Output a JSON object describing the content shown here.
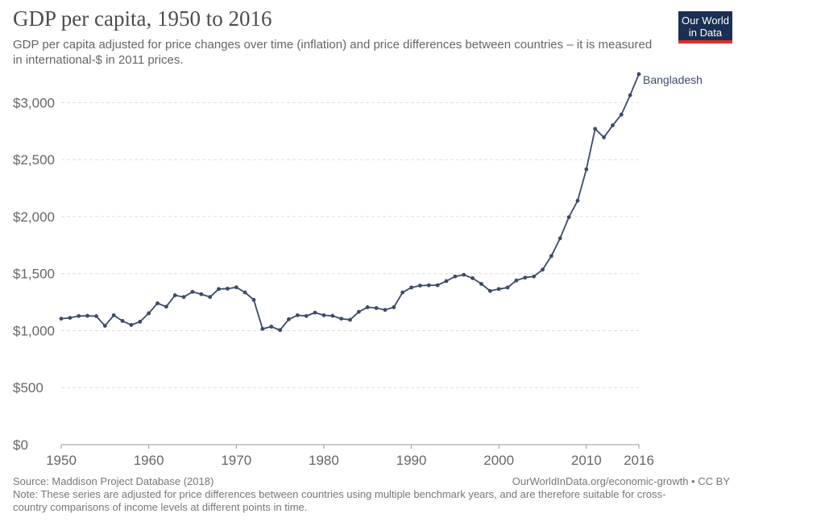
{
  "title": "GDP per capita, 1950 to 2016",
  "subtitle": "GDP per capita adjusted for price changes over time (inflation) and price differences between countries – it is measured in international-$ in 2011 prices.",
  "logo": {
    "line1": "Our World",
    "line2": "in Data"
  },
  "source": "Source: Maddison Project Database (2018)",
  "footer_link": "OurWorldInData.org/economic-growth • CC BY",
  "note": "Note: These series are adjusted for price differences between countries using multiple benchmark years, and are therefore suitable for cross-country comparisons of income levels at different points in time.",
  "colors": {
    "series": "#3c4a66",
    "grid": "#dddddd",
    "axis_text": "#666666",
    "logo_bg": "#1a2f52",
    "logo_accent": "#e0302a"
  },
  "chart_data": {
    "type": "line",
    "title": "GDP per capita, 1950 to 2016",
    "xlabel": "",
    "ylabel": "",
    "xlim": [
      1950,
      2016
    ],
    "ylim": [
      0,
      3250
    ],
    "grid": true,
    "x_ticks": [
      1950,
      1960,
      1970,
      1980,
      1990,
      2000,
      2010,
      2016
    ],
    "y_ticks": [
      0,
      500,
      1000,
      1500,
      2000,
      2500,
      3000
    ],
    "y_tick_labels": [
      "$0",
      "$500",
      "$1,000",
      "$1,500",
      "$2,000",
      "$2,500",
      "$3,000"
    ],
    "series": [
      {
        "name": "Bangladesh",
        "x": [
          1950,
          1951,
          1952,
          1953,
          1954,
          1955,
          1956,
          1957,
          1958,
          1959,
          1960,
          1961,
          1962,
          1963,
          1964,
          1965,
          1966,
          1967,
          1968,
          1969,
          1970,
          1971,
          1972,
          1973,
          1974,
          1975,
          1976,
          1977,
          1978,
          1979,
          1980,
          1981,
          1982,
          1983,
          1984,
          1985,
          1986,
          1987,
          1988,
          1989,
          1990,
          1991,
          1992,
          1993,
          1994,
          1995,
          1996,
          1997,
          1998,
          1999,
          2000,
          2001,
          2002,
          2003,
          2004,
          2005,
          2006,
          2007,
          2008,
          2009,
          2010,
          2011,
          2012,
          2013,
          2014,
          2015,
          2016
        ],
        "y": [
          1105,
          1112,
          1128,
          1130,
          1127,
          1042,
          1135,
          1085,
          1050,
          1078,
          1152,
          1240,
          1210,
          1310,
          1295,
          1340,
          1320,
          1295,
          1365,
          1368,
          1380,
          1335,
          1270,
          1015,
          1035,
          1005,
          1100,
          1135,
          1128,
          1158,
          1135,
          1130,
          1105,
          1095,
          1165,
          1205,
          1198,
          1182,
          1205,
          1335,
          1378,
          1395,
          1398,
          1398,
          1435,
          1475,
          1490,
          1460,
          1410,
          1348,
          1365,
          1378,
          1440,
          1465,
          1475,
          1535,
          1655,
          1810,
          1995,
          2140,
          2415,
          2770,
          2695,
          2800,
          2895,
          3065,
          3250
        ]
      }
    ]
  }
}
